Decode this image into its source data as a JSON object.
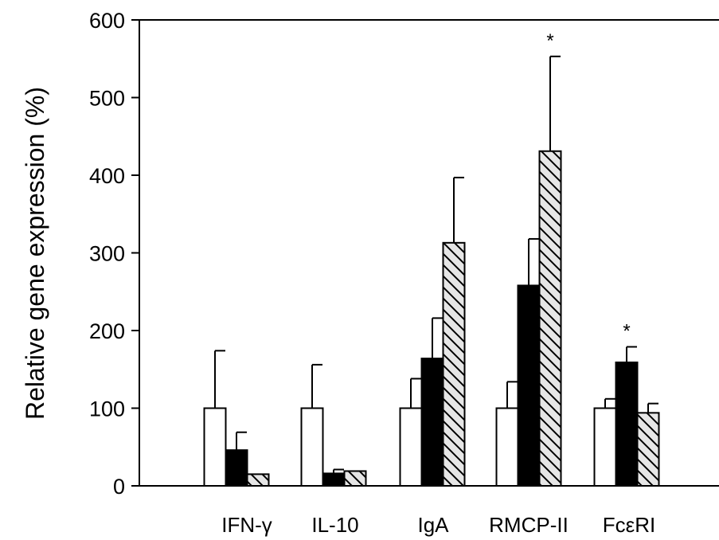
{
  "chart_data": {
    "type": "bar",
    "title": "",
    "xlabel": "",
    "ylabel": "Relative gene expression (%)",
    "ylim": [
      0,
      600
    ],
    "yticks": [
      0,
      100,
      200,
      300,
      400,
      500,
      600
    ],
    "categories": [
      "IFN-γ",
      "IL-10",
      "IgA",
      "RMCP-II",
      "FcεRI"
    ],
    "series": [
      {
        "values": [
          100,
          100,
          100,
          100,
          100
        ],
        "errors": [
          74,
          56,
          38,
          34,
          12
        ],
        "fill": "#ffffff",
        "pattern": "none"
      },
      {
        "values": [
          46,
          16,
          164,
          258,
          159
        ],
        "errors": [
          23,
          5,
          52,
          60,
          20
        ],
        "fill": "#000000",
        "pattern": "none"
      },
      {
        "values": [
          15,
          19,
          313,
          431,
          94
        ],
        "errors": [
          0,
          0,
          84,
          122,
          12
        ],
        "fill": "#e6e6e6",
        "pattern": "diagonal-hatch"
      }
    ],
    "annotations": [
      {
        "text": "*",
        "category": 3,
        "series": 2
      },
      {
        "text": "*",
        "category": 4,
        "series": 1
      }
    ],
    "grid": false,
    "legend": "none"
  }
}
